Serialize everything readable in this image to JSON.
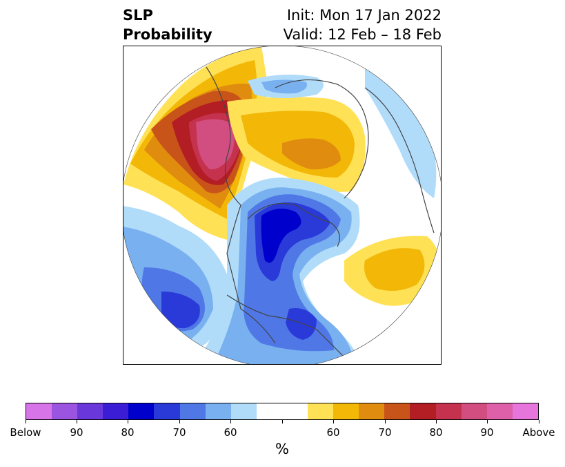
{
  "title": {
    "left_line1": "SLP",
    "left_line2": "Probability",
    "right_line1": "Init: Mon 17 Jan 2022",
    "right_line2": "Valid: 12 Feb – 18 Feb"
  },
  "colorbar": {
    "unit": "%",
    "tick_labels": [
      "Below",
      "90",
      "80",
      "70",
      "60",
      "60",
      "70",
      "80",
      "90",
      "Above"
    ],
    "below_colors": [
      "#d674e8",
      "#9b54e0",
      "#6a38da",
      "#3c1dd6",
      "#0000cc",
      "#2a3ad9",
      "#4f77e6",
      "#78b0f0",
      "#b0dcfa"
    ],
    "neutral_color": "#ffffff",
    "above_colors": [
      "#ffe155",
      "#f2b707",
      "#e08c0f",
      "#c9541a",
      "#b31e24",
      "#c4324e",
      "#d24e80",
      "#dd60a8",
      "#e776dc"
    ]
  },
  "map": {
    "projection": "north-polar-stereographic",
    "anomaly_regions": [
      {
        "name": "Western Europe / Atlantic high",
        "sign": "above",
        "peak_class": "90"
      },
      {
        "name": "Central Asia / Siberia high",
        "sign": "above",
        "peak_class": "60"
      },
      {
        "name": "Arctic / Canadian Archipelago low",
        "sign": "below",
        "peak_class": "80"
      },
      {
        "name": "Eastern North America low",
        "sign": "below",
        "peak_class": "80"
      },
      {
        "name": "Northeast Pacific high",
        "sign": "above",
        "peak_class": "60"
      },
      {
        "name": "North Atlantic low",
        "sign": "below",
        "peak_class": "70"
      }
    ]
  }
}
